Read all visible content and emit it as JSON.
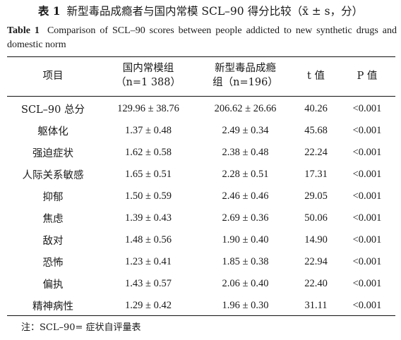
{
  "title_cn": {
    "label": "表 1",
    "text": "新型毒品成瘾者与国内常模 SCL–90 得分比较（x̄ ± s，分）"
  },
  "title_en": {
    "label": "Table 1",
    "text": "Comparison of SCL–90 scores between people addicted to new synthetic drugs and domestic norm"
  },
  "header": {
    "item": "项目",
    "norm_line1": "国内常模组",
    "norm_line2": "（n=1 388）",
    "drug_line1": "新型毒品成瘾",
    "drug_line2": "组（n=196）",
    "t": "t 值",
    "p": "P 值"
  },
  "rows": [
    {
      "item": "SCL–90 总分",
      "norm": "129.96 ± 38.76",
      "drug": "206.62 ± 26.66",
      "t": "40.26",
      "p": "<0.001"
    },
    {
      "item": "躯体化",
      "norm": "1.37 ± 0.48",
      "drug": "2.49 ± 0.34",
      "t": "45.68",
      "p": "<0.001"
    },
    {
      "item": "强迫症状",
      "norm": "1.62 ± 0.58",
      "drug": "2.38 ± 0.48",
      "t": "22.24",
      "p": "<0.001"
    },
    {
      "item": "人际关系敏感",
      "norm": "1.65 ± 0.51",
      "drug": "2.28 ± 0.51",
      "t": "17.31",
      "p": "<0.001"
    },
    {
      "item": "抑郁",
      "norm": "1.50 ± 0.59",
      "drug": "2.46 ± 0.46",
      "t": "29.05",
      "p": "<0.001"
    },
    {
      "item": "焦虑",
      "norm": "1.39 ± 0.43",
      "drug": "2.69 ± 0.36",
      "t": "50.06",
      "p": "<0.001"
    },
    {
      "item": "敌对",
      "norm": "1.48 ± 0.56",
      "drug": "1.90 ± 0.40",
      "t": "14.90",
      "p": "<0.001"
    },
    {
      "item": "恐怖",
      "norm": "1.23 ± 0.41",
      "drug": "1.85 ± 0.38",
      "t": "22.94",
      "p": "<0.001"
    },
    {
      "item": "偏执",
      "norm": "1.43 ± 0.57",
      "drug": "2.06 ± 0.40",
      "t": "22.40",
      "p": "<0.001"
    },
    {
      "item": "精神病性",
      "norm": "1.29 ± 0.42",
      "drug": "1.96 ± 0.30",
      "t": "31.11",
      "p": "<0.001"
    }
  ],
  "note": "注：SCL–90= 症状自评量表"
}
